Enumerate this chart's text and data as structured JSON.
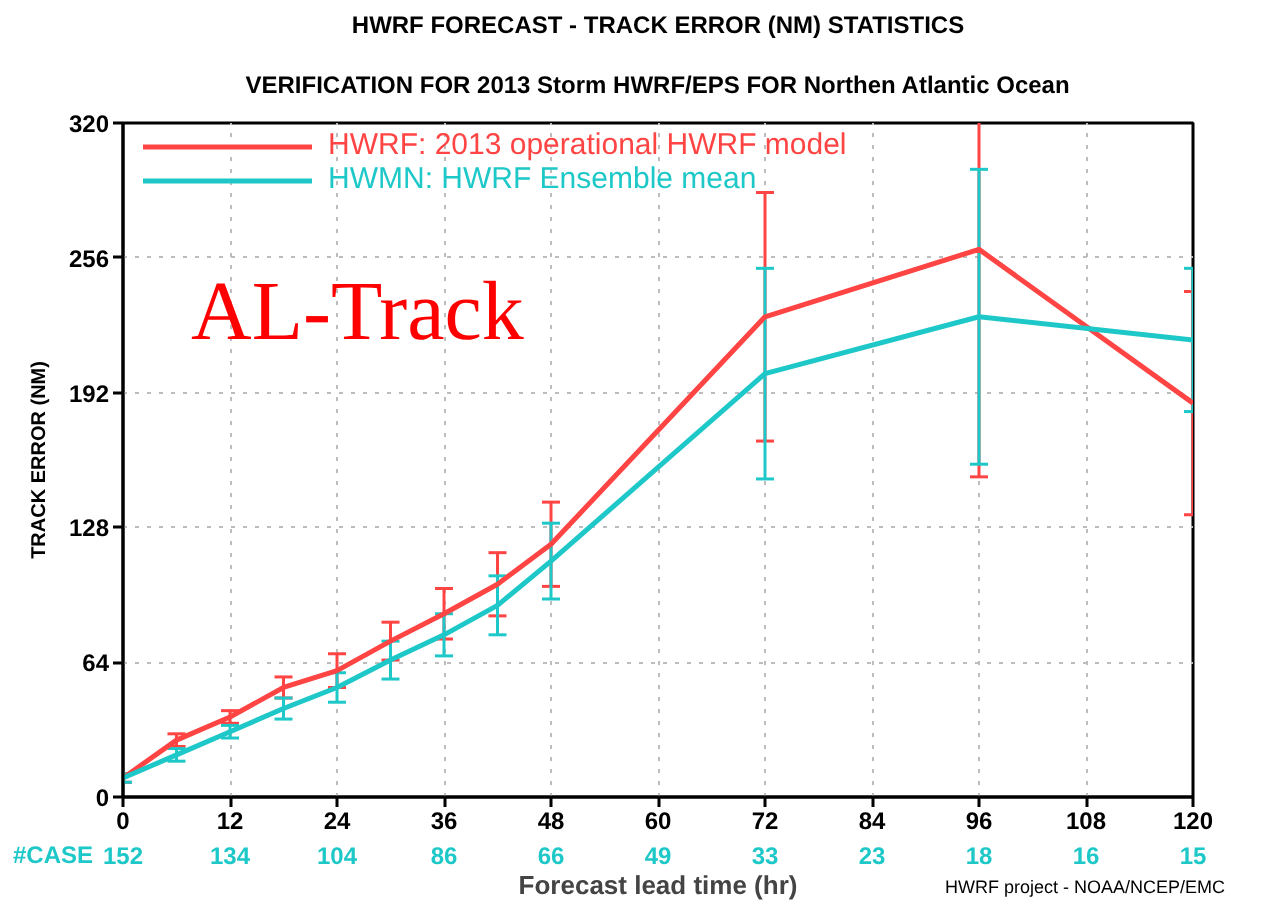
{
  "chart_data": {
    "type": "line",
    "title": "HWRF FORECAST - TRACK ERROR (NM) STATISTICS",
    "subtitle": "VERIFICATION FOR 2013 Storm HWRF/EPS FOR Northen Atlantic Ocean",
    "xlabel": "Forecast lead time (hr)",
    "ylabel": "TRACK ERROR (NM)",
    "x": [
      0,
      6,
      12,
      18,
      24,
      30,
      36,
      42,
      48,
      72,
      96,
      120
    ],
    "series": [
      {
        "name": "HWRF: 2013 operational HWRF model",
        "color": "#ff4444",
        "values": [
          9,
          27,
          38,
          52,
          60,
          74,
          87,
          101,
          120,
          228,
          260,
          187
        ],
        "errors": [
          2,
          3,
          3,
          5,
          8,
          9,
          12,
          15,
          20,
          59,
          108,
          53
        ]
      },
      {
        "name": "HWMN: HWRF Ensemble mean",
        "color": "#1fc8c8",
        "values": [
          9,
          20,
          31,
          42,
          52,
          65,
          77,
          91,
          112,
          201,
          228,
          217
        ],
        "errors": [
          2,
          3,
          3,
          5,
          7,
          9,
          10,
          14,
          18,
          50,
          70,
          34
        ]
      }
    ],
    "xlim": [
      0,
      120
    ],
    "ylim": [
      0,
      320
    ],
    "xticks": [
      0,
      12,
      24,
      36,
      48,
      60,
      72,
      84,
      96,
      108,
      120
    ],
    "yticks": [
      0,
      64,
      128,
      192,
      256,
      320
    ],
    "annotations": [
      "AL-Track",
      "HWRF project - NOAA/NCEP/EMC",
      "#CASE",
      "152",
      "134",
      "104",
      "86",
      "66",
      "49",
      "33",
      "23",
      "18",
      "16",
      "15"
    ],
    "grid": true,
    "legend": "top left"
  }
}
